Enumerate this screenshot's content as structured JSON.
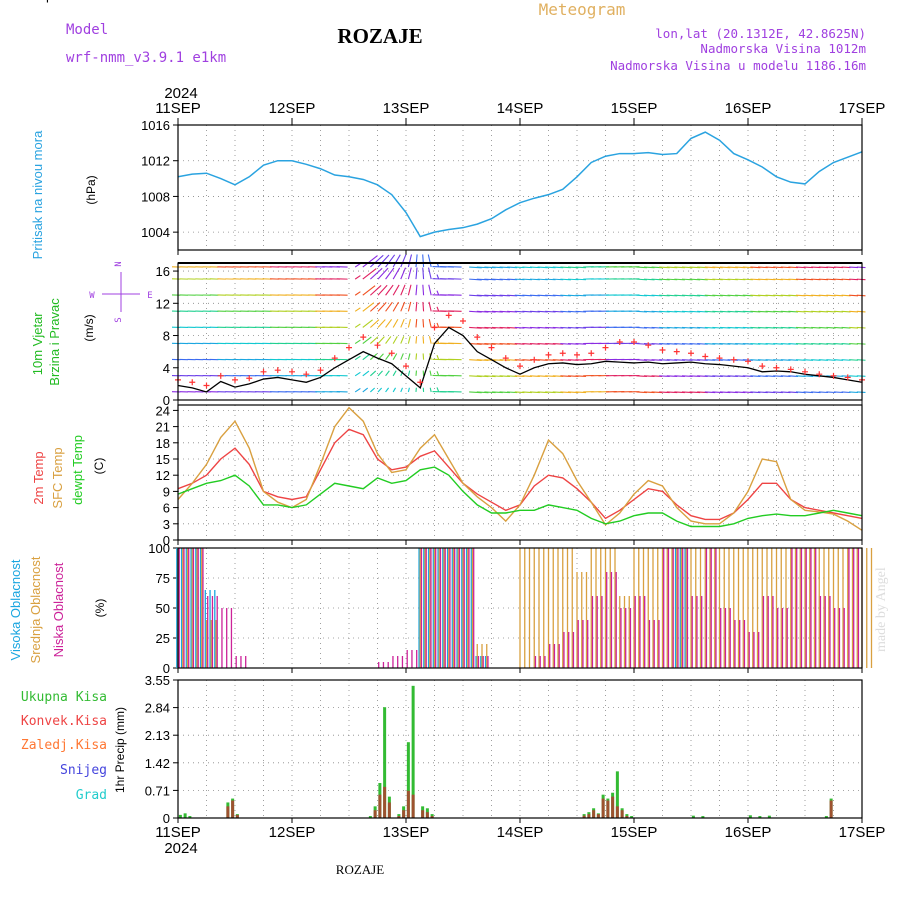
{
  "header": {
    "model_label": "Model",
    "model_name": "wrf-nmm_v3.9.1  e1km",
    "station": "ROZAJE",
    "meteogram_label": "Meteogram",
    "lonlat": "lon,lat (20.1312E, 42.8625N)",
    "elevation": "Nadmorska Visina 1012m",
    "model_elevation": "Nadmorska Visina u modelu 1186.16m",
    "signature": "made by Angel",
    "footer_station": "ROZAJE"
  },
  "colors": {
    "pressure": "#2aa3e0",
    "temp2m": "#ee4444",
    "sfc_temp": "#d9a040",
    "dewpoint": "#22cc22",
    "high_cloud": "#1aa6e0",
    "mid_cloud": "#d9a040",
    "low_cloud": "#cc2299",
    "total_precip": "#33bb33",
    "conv_precip": "#ee4444",
    "frozen_precip": "#ff7733",
    "snow": "#4444dd",
    "hail": "#22cccc",
    "model_text": "#a040e0",
    "meteogram_text": "#e0b060",
    "gust": "#ff3333"
  },
  "chart_data": [
    {
      "type": "line",
      "panel": "pressure",
      "title": "Meteogram",
      "ylabel": "Pritisak na nivou mora",
      "unit": "(hPa)",
      "ylim": [
        1002,
        1016
      ],
      "yticks": [
        "1016",
        "1012",
        "1008",
        "1004"
      ],
      "year": "2024",
      "xticks": [
        "11SEP",
        "12SEP",
        "13SEP",
        "14SEP",
        "15SEP",
        "16SEP",
        "17SEP"
      ],
      "x_hours": [
        0,
        3,
        6,
        9,
        12,
        15,
        18,
        21,
        24,
        27,
        30,
        33,
        36,
        39,
        42,
        45,
        48,
        51,
        54,
        57,
        60,
        63,
        66,
        69,
        72,
        75,
        78,
        81,
        84,
        87,
        90,
        93,
        96,
        99,
        102,
        105,
        108,
        111,
        114,
        117,
        120,
        123,
        126,
        129,
        132,
        135,
        138,
        141,
        144
      ],
      "series": [
        {
          "values": [
            1010.2,
            1010.5,
            1010.6,
            1010.0,
            1009.3,
            1010.2,
            1011.5,
            1012.0,
            1012.0,
            1011.6,
            1011.1,
            1010.4,
            1010.2,
            1009.9,
            1009.3,
            1008.2,
            1006.2,
            1003.5,
            1004.0,
            1004.3,
            1004.5,
            1004.9,
            1005.5,
            1006.5,
            1007.3,
            1007.8,
            1008.2,
            1008.8,
            1010.2,
            1011.8,
            1012.5,
            1012.8,
            1012.8,
            1012.9,
            1012.7,
            1012.8,
            1014.5,
            1015.2,
            1014.3,
            1012.8,
            1012.1,
            1011.3,
            1010.2,
            1009.6,
            1009.4,
            1010.8,
            1011.8,
            1012.4,
            1013.0
          ]
        }
      ]
    },
    {
      "type": "line",
      "panel": "wind",
      "ylabel": "10m Vjetar Brzina i Pravac",
      "unit": "(m/s)",
      "compass": [
        "N",
        "S",
        "E",
        "W"
      ],
      "ylim": [
        0,
        17
      ],
      "yticks": [
        "16",
        "12",
        "8",
        "4",
        "0"
      ],
      "xticks": [
        "11SEP",
        "12SEP",
        "13SEP",
        "14SEP",
        "15SEP",
        "16SEP",
        "17SEP"
      ],
      "x_hours": [
        0,
        3,
        6,
        9,
        12,
        15,
        18,
        21,
        24,
        27,
        30,
        33,
        36,
        39,
        42,
        45,
        48,
        51,
        54,
        57,
        60,
        63,
        66,
        69,
        72,
        75,
        78,
        81,
        84,
        87,
        90,
        93,
        96,
        99,
        102,
        105,
        108,
        111,
        114,
        117,
        120,
        123,
        126,
        129,
        132,
        135,
        138,
        141,
        144
      ],
      "series": [
        {
          "name": "wind speed",
          "values": [
            1.8,
            1.5,
            1.0,
            2.3,
            1.6,
            2.0,
            2.6,
            2.8,
            2.5,
            2.2,
            2.8,
            4.0,
            5.0,
            6.0,
            5.2,
            4.5,
            3.0,
            1.5,
            7.0,
            9.0,
            8.0,
            6.0,
            5.0,
            4.0,
            3.2,
            4.0,
            4.5,
            4.6,
            4.4,
            4.5,
            4.8,
            4.7,
            4.6,
            4.7,
            4.5,
            4.6,
            4.7,
            4.5,
            4.4,
            4.2,
            4.0,
            3.5,
            3.6,
            3.5,
            3.2,
            3.0,
            2.8,
            2.5,
            2.2
          ]
        },
        {
          "name": "gust",
          "values": [
            2.5,
            2.2,
            1.8,
            3.0,
            2.5,
            2.7,
            3.5,
            3.7,
            3.5,
            3.2,
            3.7,
            5.2,
            6.5,
            7.8,
            6.8,
            5.8,
            4.2,
            2.2,
            9.0,
            10.5,
            9.8,
            7.8,
            6.5,
            5.2,
            4.2,
            5.0,
            5.6,
            5.8,
            5.6,
            5.8,
            6.5,
            7.2,
            7.2,
            6.8,
            6.2,
            6.0,
            5.8,
            5.4,
            5.2,
            5.0,
            4.8,
            4.2,
            4.0,
            3.8,
            3.5,
            3.2,
            3.0,
            2.8,
            2.5
          ]
        }
      ]
    },
    {
      "type": "line",
      "panel": "temperature",
      "ylabel": "2m Temp / SFC Temp / dewpt Temp",
      "series_labels": [
        "2m Temp",
        "SFC Temp",
        "dewpt Temp"
      ],
      "unit": "(C)",
      "ylim": [
        0,
        25
      ],
      "yticks": [
        "24",
        "21",
        "18",
        "15",
        "12",
        "9",
        "6",
        "3",
        "0"
      ],
      "xticks": [
        "11SEP",
        "12SEP",
        "13SEP",
        "14SEP",
        "15SEP",
        "16SEP",
        "17SEP"
      ],
      "x_hours": [
        0,
        3,
        6,
        9,
        12,
        15,
        18,
        21,
        24,
        27,
        30,
        33,
        36,
        39,
        42,
        45,
        48,
        51,
        54,
        57,
        60,
        63,
        66,
        69,
        72,
        75,
        78,
        81,
        84,
        87,
        90,
        93,
        96,
        99,
        102,
        105,
        108,
        111,
        114,
        117,
        120,
        123,
        126,
        129,
        132,
        135,
        138,
        141,
        144
      ],
      "series": [
        {
          "name": "2m Temp",
          "values": [
            9.5,
            10.5,
            12.0,
            15.0,
            17.0,
            14.0,
            9.0,
            8.0,
            7.5,
            8.0,
            13.0,
            18.0,
            20.5,
            19.5,
            15.0,
            13.0,
            13.5,
            15.5,
            16.5,
            13.5,
            10.5,
            8.5,
            7.0,
            5.5,
            6.5,
            10.0,
            12.0,
            11.5,
            9.5,
            7.0,
            4.0,
            5.5,
            7.5,
            9.5,
            9.0,
            6.5,
            4.5,
            3.8,
            3.8,
            5.0,
            7.5,
            10.5,
            10.5,
            7.5,
            6.0,
            5.5,
            5.0,
            4.5,
            4.0
          ]
        },
        {
          "name": "SFC Temp",
          "values": [
            7.5,
            10.5,
            14.0,
            19.0,
            22.0,
            17.0,
            9.0,
            7.0,
            6.0,
            7.5,
            14.0,
            21.0,
            24.5,
            22.0,
            16.0,
            12.5,
            13.0,
            17.0,
            19.5,
            15.0,
            10.5,
            8.0,
            6.0,
            3.5,
            6.5,
            12.0,
            18.5,
            16.0,
            11.0,
            7.0,
            2.8,
            5.0,
            8.5,
            11.0,
            10.0,
            6.0,
            3.5,
            3.0,
            3.0,
            5.0,
            9.0,
            15.0,
            14.5,
            7.5,
            5.5,
            5.2,
            4.8,
            3.5,
            1.8
          ]
        },
        {
          "name": "dewpt Temp",
          "values": [
            8.5,
            9.5,
            10.5,
            11.0,
            12.0,
            10.0,
            6.5,
            6.5,
            6.0,
            6.5,
            8.5,
            10.5,
            10.0,
            9.5,
            11.5,
            10.5,
            11.0,
            13.0,
            13.5,
            12.0,
            9.0,
            6.5,
            5.0,
            5.0,
            5.5,
            5.5,
            6.5,
            6.0,
            5.5,
            4.0,
            3.0,
            3.5,
            4.5,
            5.0,
            5.0,
            3.5,
            2.5,
            2.5,
            2.5,
            3.0,
            4.0,
            4.5,
            4.8,
            4.5,
            4.5,
            5.0,
            5.5,
            5.0,
            4.5
          ]
        }
      ]
    },
    {
      "type": "bar",
      "panel": "cloud",
      "ylabel": "Visoka Oblacnost / Srednja Oblacnost / Niska Oblacnost",
      "series_labels": [
        "Visoka Oblacnost",
        "Srednja Oblacnost",
        "Niska Oblacnost"
      ],
      "unit": "(%)",
      "ylim": [
        0,
        100
      ],
      "yticks": [
        "100",
        "75",
        "50",
        "25",
        "0"
      ],
      "xticks": [
        "11SEP",
        "12SEP",
        "13SEP",
        "14SEP",
        "15SEP",
        "16SEP",
        "17SEP"
      ],
      "x_hours": [
        0,
        3,
        6,
        9,
        12,
        15,
        18,
        21,
        24,
        27,
        30,
        33,
        36,
        39,
        42,
        45,
        48,
        51,
        54,
        57,
        60,
        63,
        66,
        69,
        72,
        75,
        78,
        81,
        84,
        87,
        90,
        93,
        96,
        99,
        102,
        105,
        108,
        111,
        114,
        117,
        120,
        123,
        126,
        129,
        132,
        135,
        138,
        141,
        144
      ],
      "series": [
        {
          "name": "Visoka Oblacnost",
          "values": [
            100,
            100,
            65,
            0,
            0,
            0,
            0,
            0,
            0,
            0,
            0,
            0,
            0,
            0,
            0,
            0,
            0,
            100,
            100,
            100,
            100,
            10,
            0,
            0,
            0,
            0,
            0,
            0,
            0,
            0,
            0,
            0,
            0,
            0,
            0,
            100,
            0,
            0,
            0,
            0,
            0,
            0,
            0,
            0,
            0,
            0,
            0,
            0,
            0
          ]
        },
        {
          "name": "Srednja Oblacnost",
          "values": [
            100,
            100,
            40,
            0,
            0,
            0,
            0,
            0,
            0,
            0,
            0,
            0,
            0,
            0,
            0,
            0,
            0,
            100,
            100,
            100,
            100,
            20,
            0,
            0,
            100,
            100,
            100,
            100,
            80,
            100,
            100,
            60,
            100,
            100,
            100,
            100,
            100,
            100,
            100,
            100,
            100,
            100,
            100,
            100,
            100,
            100,
            100,
            100,
            100
          ]
        },
        {
          "name": "Niska Oblacnost",
          "values": [
            100,
            100,
            60,
            50,
            10,
            0,
            0,
            0,
            0,
            0,
            0,
            0,
            0,
            0,
            5,
            10,
            15,
            100,
            100,
            100,
            100,
            10,
            0,
            0,
            0,
            10,
            20,
            30,
            40,
            60,
            80,
            50,
            60,
            40,
            100,
            100,
            60,
            100,
            50,
            40,
            30,
            60,
            50,
            100,
            100,
            60,
            50,
            100,
            0
          ]
        }
      ]
    },
    {
      "type": "bar",
      "panel": "precipitation",
      "ylabel": "1hr Precip (mm)",
      "legend": [
        "Ukupna Kisa",
        "Konvek.Kisa",
        "Zaledj.Kisa",
        "Snijeg",
        "Grad"
      ],
      "ylim": [
        0,
        3.55
      ],
      "yticks": [
        "3.55",
        "2.84",
        "2.13",
        "1.42",
        "0.71",
        "0"
      ],
      "xticks": [
        "11SEP",
        "12SEP",
        "13SEP",
        "14SEP",
        "15SEP",
        "16SEP",
        "17SEP"
      ],
      "year": "2024",
      "x_hours": [
        0.5,
        1.5,
        2.5,
        10.5,
        11.5,
        12.5,
        40.5,
        41.5,
        42.5,
        43.5,
        44.5,
        46.5,
        47.5,
        48.5,
        49.5,
        51.5,
        52.5,
        53.5,
        85.5,
        86.5,
        87.5,
        88.5,
        89.5,
        90.5,
        91.5,
        92.5,
        93.5,
        94.5,
        95.5,
        108.5,
        110.5,
        120.5,
        122.5,
        124.5,
        136.5,
        137.5
      ],
      "series": [
        {
          "name": "Ukupna Kisa",
          "values": [
            0.08,
            0.12,
            0.05,
            0.4,
            0.5,
            0.1,
            0.05,
            0.3,
            0.9,
            2.85,
            0.55,
            0.1,
            0.3,
            1.95,
            3.4,
            0.3,
            0.25,
            0.1,
            0.1,
            0.15,
            0.25,
            0.12,
            0.6,
            0.5,
            0.65,
            1.2,
            0.25,
            0.1,
            0.05,
            0.06,
            0.05,
            0.07,
            0.05,
            0.06,
            0.05,
            0.5
          ]
        },
        {
          "name": "Konvek.Kisa",
          "values": [
            0,
            0,
            0,
            0.3,
            0.45,
            0.08,
            0,
            0.2,
            0.6,
            0.8,
            0.4,
            0.05,
            0.2,
            0.7,
            0.6,
            0.2,
            0.15,
            0.05,
            0.06,
            0.1,
            0.2,
            0.1,
            0.5,
            0.45,
            0.55,
            0.3,
            0.2,
            0.05,
            0,
            0,
            0,
            0,
            0,
            0,
            0,
            0.45
          ]
        },
        {
          "name": "Zaledj.Kisa",
          "values": [
            0,
            0,
            0,
            0,
            0,
            0,
            0,
            0,
            0,
            0,
            0,
            0,
            0,
            0,
            0,
            0,
            0,
            0,
            0,
            0,
            0,
            0,
            0,
            0,
            0,
            0,
            0,
            0,
            0,
            0,
            0,
            0,
            0,
            0,
            0,
            0
          ]
        },
        {
          "name": "Snijeg",
          "values": [
            0,
            0,
            0,
            0,
            0,
            0,
            0,
            0,
            0,
            0,
            0,
            0,
            0,
            0,
            0,
            0,
            0,
            0,
            0,
            0,
            0,
            0,
            0,
            0,
            0,
            0,
            0,
            0,
            0,
            0,
            0,
            0,
            0,
            0,
            0,
            0
          ]
        },
        {
          "name": "Grad",
          "values": [
            0,
            0,
            0,
            0,
            0,
            0,
            0,
            0,
            0,
            0,
            0,
            0,
            0,
            0,
            0,
            0,
            0,
            0,
            0,
            0,
            0,
            0,
            0,
            0,
            0,
            0,
            0,
            0,
            0,
            0,
            0,
            0,
            0,
            0,
            0,
            0
          ]
        }
      ]
    }
  ]
}
